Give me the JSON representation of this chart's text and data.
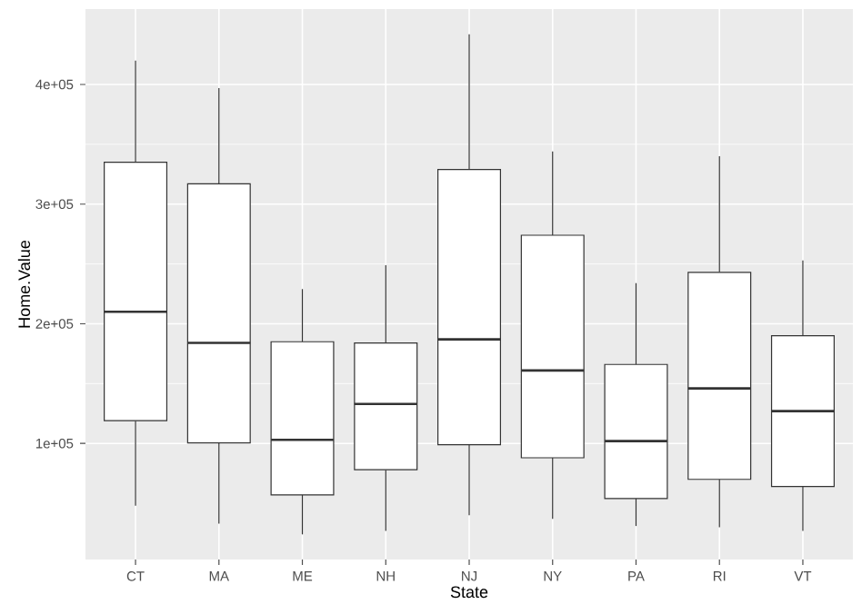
{
  "chart_data": {
    "type": "box",
    "xlabel": "State",
    "ylabel": "Home.Value",
    "categories": [
      "CT",
      "MA",
      "ME",
      "NH",
      "NJ",
      "NY",
      "PA",
      "RI",
      "VT"
    ],
    "boxes": [
      {
        "low": 48000,
        "q1": 119000,
        "median": 210000,
        "q3": 335000,
        "high": 420000
      },
      {
        "low": 33000,
        "q1": 100500,
        "median": 184000,
        "q3": 317000,
        "high": 397000
      },
      {
        "low": 24000,
        "q1": 57000,
        "median": 103000,
        "q3": 185000,
        "high": 229000
      },
      {
        "low": 27000,
        "q1": 78000,
        "median": 133000,
        "q3": 184000,
        "high": 249000
      },
      {
        "low": 40000,
        "q1": 99000,
        "median": 187000,
        "q3": 329000,
        "high": 442000
      },
      {
        "low": 37000,
        "q1": 88000,
        "median": 161000,
        "q3": 274000,
        "high": 344000
      },
      {
        "low": 31000,
        "q1": 54000,
        "median": 102000,
        "q3": 166000,
        "high": 234000
      },
      {
        "low": 30000,
        "q1": 70000,
        "median": 146000,
        "q3": 243000,
        "high": 340000
      },
      {
        "low": 27000,
        "q1": 64000,
        "median": 127000,
        "q3": 190000,
        "high": 253000
      }
    ],
    "ylim": [
      3000,
      463000
    ],
    "yticks": [
      {
        "value": 100000,
        "label": "1e+05"
      },
      {
        "value": 200000,
        "label": "2e+05"
      },
      {
        "value": 300000,
        "label": "3e+05"
      },
      {
        "value": 400000,
        "label": "4e+05"
      }
    ],
    "grid": true
  }
}
